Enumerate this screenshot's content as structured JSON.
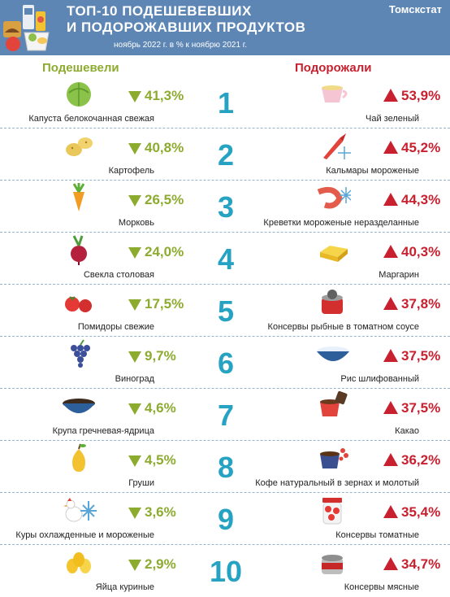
{
  "header": {
    "title_line1": "ТОП-10 ПОДЕШЕВЕВШИХ",
    "title_line2": "И ПОДОРОЖАВШИХ ПРОДУКТОВ",
    "subtitle": "ноябрь 2022 г. в % к ноябрю 2021 г.",
    "brand": "Томскстат"
  },
  "columns": {
    "cheaper": "Подешевели",
    "pricier": "Подорожали"
  },
  "colors": {
    "header_bg": "#5d86b5",
    "cheaper": "#8cab2f",
    "pricier": "#c8202e",
    "rank": "#26a2c2"
  },
  "rows": [
    {
      "rank": "1",
      "cheaper": {
        "name": "Капуста белокочанная свежая",
        "pct": "41,3%",
        "icon": "cabbage-icon"
      },
      "pricier": {
        "name": "Чай зеленый",
        "pct": "53,9%",
        "icon": "tea-cup-icon"
      }
    },
    {
      "rank": "2",
      "cheaper": {
        "name": "Картофель",
        "pct": "40,8%",
        "icon": "potato-icon"
      },
      "pricier": {
        "name": "Кальмары мороженые",
        "pct": "45,2%",
        "icon": "squid-icon"
      }
    },
    {
      "rank": "3",
      "cheaper": {
        "name": "Морковь",
        "pct": "26,5%",
        "icon": "carrot-icon"
      },
      "pricier": {
        "name": "Креветки мороженые неразделанные",
        "pct": "44,3%",
        "icon": "shrimp-icon"
      }
    },
    {
      "rank": "4",
      "cheaper": {
        "name": "Свекла столовая",
        "pct": "24,0%",
        "icon": "beet-icon"
      },
      "pricier": {
        "name": "Маргарин",
        "pct": "40,3%",
        "icon": "margarine-icon"
      }
    },
    {
      "rank": "5",
      "cheaper": {
        "name": "Помидоры свежие",
        "pct": "17,5%",
        "icon": "tomato-icon"
      },
      "pricier": {
        "name": "Консервы рыбные в томатном соусе",
        "pct": "37,8%",
        "icon": "fish-can-icon"
      }
    },
    {
      "rank": "6",
      "cheaper": {
        "name": "Виноград",
        "pct": "9,7%",
        "icon": "grapes-icon"
      },
      "pricier": {
        "name": "Рис шлифованный",
        "pct": "37,5%",
        "icon": "rice-bowl-icon"
      }
    },
    {
      "rank": "7",
      "cheaper": {
        "name": "Крупа гречневая-ядрица",
        "pct": "4,6%",
        "icon": "buckwheat-bowl-icon"
      },
      "pricier": {
        "name": "Какао",
        "pct": "37,5%",
        "icon": "cocoa-cup-icon"
      }
    },
    {
      "rank": "8",
      "cheaper": {
        "name": "Груши",
        "pct": "4,5%",
        "icon": "pear-icon"
      },
      "pricier": {
        "name": "Кофе натуральный в зернах и молотый",
        "pct": "36,2%",
        "icon": "coffee-cup-icon"
      }
    },
    {
      "rank": "9",
      "cheaper": {
        "name": "Куры охлажденные и мороженые",
        "pct": "3,6%",
        "icon": "chicken-icon"
      },
      "pricier": {
        "name": "Консервы томатные",
        "pct": "35,4%",
        "icon": "tomato-jar-icon"
      }
    },
    {
      "rank": "10",
      "cheaper": {
        "name": "Яйца куриные",
        "pct": "2,9%",
        "icon": "eggs-icon"
      },
      "pricier": {
        "name": "Консервы мясные",
        "pct": "34,7%",
        "icon": "meat-can-icon"
      }
    }
  ]
}
